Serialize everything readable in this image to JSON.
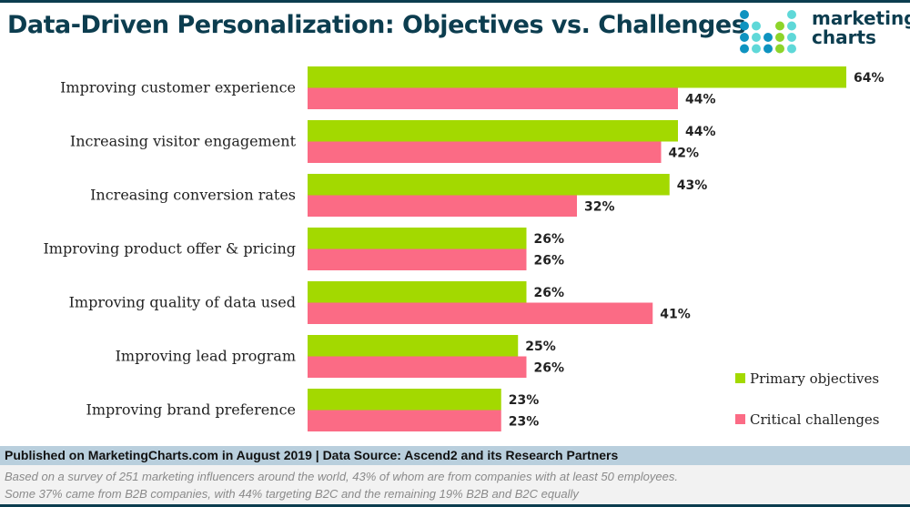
{
  "header": {
    "title": "Data-Driven Personalization: Objectives vs. Challenges",
    "logo_text": [
      "marketing",
      "charts"
    ]
  },
  "colors": {
    "primary": "#a3d900",
    "critical": "#fb6b85",
    "brand": "#0c3d4f"
  },
  "chart_data": {
    "type": "bar",
    "orientation": "horizontal",
    "title": "Data-Driven Personalization: Objectives vs. Challenges",
    "categories": [
      "Improving customer experience",
      "Increasing visitor engagement",
      "Increasing conversion rates",
      "Improving product offer & pricing",
      "Improving quality of data used",
      "Improving lead program",
      "Improving brand preference"
    ],
    "series": [
      {
        "name": "Primary objectives",
        "color": "#a3d900",
        "values": [
          64,
          44,
          43,
          26,
          26,
          25,
          23
        ]
      },
      {
        "name": "Critical challenges",
        "color": "#fb6b85",
        "values": [
          44,
          42,
          32,
          26,
          41,
          26,
          23
        ]
      }
    ],
    "unit": "%",
    "legend": "bottom-right",
    "grid": false
  },
  "footer": {
    "published": "Published on MarketingCharts.com in August 2019 | Data Source: Ascend2 and its Research Partners",
    "note_lines": [
      "Based on a survey of 251 marketing influencers around the world, 43% of whom are from companies with at least 50 employees.",
      "Some 37% came from B2B companies, with 44% targeting B2C and the remaining 19% B2B and B2C equally"
    ]
  }
}
